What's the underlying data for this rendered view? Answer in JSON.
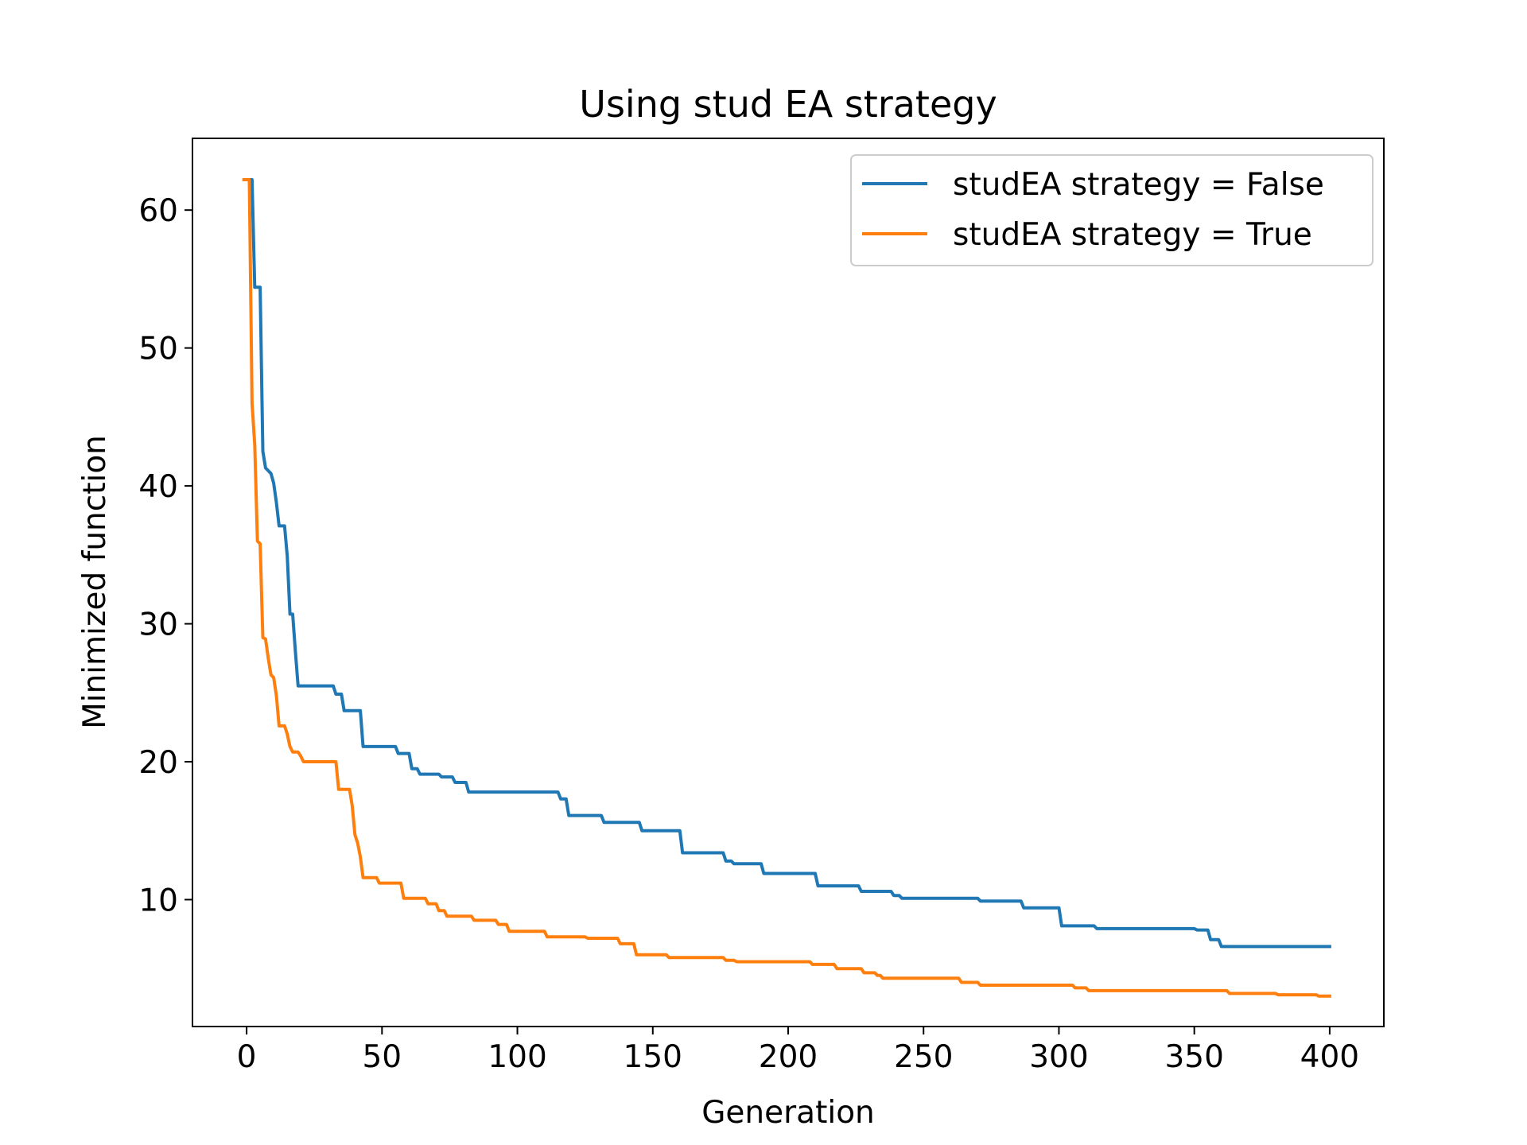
{
  "chart_data": {
    "type": "line",
    "title": "Using stud EA strategy",
    "xlabel": "Generation",
    "ylabel": "Minimized function",
    "xlim": [
      -20,
      420
    ],
    "ylim": [
      0.8,
      65.2
    ],
    "xticks": [
      0,
      50,
      100,
      150,
      200,
      250,
      300,
      350,
      400
    ],
    "yticks": [
      10,
      20,
      30,
      40,
      50,
      60
    ],
    "grid": false,
    "legend": "top-right",
    "series": [
      {
        "name": "studEA strategy = False",
        "color": "#1f77b4",
        "x": [
          0,
          2,
          3,
          4,
          5,
          6,
          7,
          8,
          9,
          10,
          11,
          12,
          13,
          14,
          15,
          16,
          17,
          18,
          19,
          20,
          32,
          33,
          35,
          36,
          42,
          43,
          55,
          56,
          60,
          61,
          63,
          64,
          71,
          72,
          76,
          77,
          81,
          82,
          115,
          116,
          118,
          119,
          131,
          132,
          145,
          146,
          160,
          161,
          176,
          177,
          179,
          180,
          190,
          191,
          210,
          211,
          226,
          227,
          238,
          239,
          241,
          242,
          270,
          271,
          286,
          287,
          300,
          301,
          313,
          314,
          350,
          351,
          355,
          356,
          359,
          360,
          400
        ],
        "y": [
          62.2,
          62.2,
          54.4,
          54.4,
          54.4,
          42.5,
          41.3,
          41.1,
          40.9,
          40.2,
          38.8,
          37.1,
          37.1,
          37.1,
          34.9,
          30.7,
          30.7,
          28.0,
          25.5,
          25.5,
          25.5,
          24.9,
          24.9,
          23.7,
          23.7,
          21.1,
          21.1,
          20.6,
          20.6,
          19.5,
          19.5,
          19.1,
          19.1,
          18.9,
          18.9,
          18.5,
          18.5,
          17.8,
          17.8,
          17.3,
          17.3,
          16.1,
          16.1,
          15.6,
          15.6,
          15.0,
          15.0,
          13.4,
          13.4,
          12.8,
          12.8,
          12.6,
          12.6,
          11.9,
          11.9,
          11.0,
          11.0,
          10.6,
          10.6,
          10.3,
          10.3,
          10.1,
          10.1,
          9.9,
          9.9,
          9.4,
          9.4,
          8.1,
          8.1,
          7.9,
          7.9,
          7.8,
          7.8,
          7.1,
          7.1,
          6.6,
          6.6
        ]
      },
      {
        "name": "studEA strategy = True",
        "color": "#ff7f0e",
        "x": [
          -1,
          1,
          2,
          3,
          4,
          5,
          6,
          7,
          8,
          9,
          10,
          11,
          12,
          13,
          14,
          15,
          16,
          17,
          18,
          19,
          20,
          21,
          33,
          34,
          38,
          39,
          40,
          41,
          42,
          43,
          48,
          49,
          57,
          58,
          66,
          67,
          70,
          71,
          73,
          74,
          83,
          84,
          92,
          93,
          96,
          97,
          110,
          111,
          125,
          126,
          137,
          138,
          143,
          144,
          155,
          156,
          176,
          177,
          180,
          181,
          208,
          209,
          217,
          218,
          227,
          228,
          232,
          233,
          234,
          235,
          263,
          264,
          270,
          271,
          305,
          306,
          310,
          311,
          362,
          363,
          380,
          381,
          395,
          396,
          400
        ],
        "y": [
          62.2,
          62.2,
          46.0,
          43.0,
          36.0,
          35.8,
          29.0,
          28.9,
          27.5,
          26.3,
          26.1,
          24.8,
          22.6,
          22.6,
          22.6,
          22.0,
          21.1,
          20.7,
          20.7,
          20.7,
          20.4,
          20.0,
          20.0,
          18.0,
          18.0,
          16.8,
          14.7,
          14.1,
          13.1,
          11.6,
          11.6,
          11.2,
          11.2,
          10.1,
          10.1,
          9.7,
          9.7,
          9.2,
          9.2,
          8.8,
          8.8,
          8.5,
          8.5,
          8.2,
          8.2,
          7.7,
          7.7,
          7.3,
          7.3,
          7.2,
          7.2,
          6.8,
          6.8,
          6.0,
          6.0,
          5.8,
          5.8,
          5.6,
          5.6,
          5.5,
          5.5,
          5.3,
          5.3,
          5.0,
          5.0,
          4.7,
          4.7,
          4.5,
          4.5,
          4.3,
          4.3,
          4.0,
          4.0,
          3.8,
          3.8,
          3.6,
          3.6,
          3.4,
          3.4,
          3.2,
          3.2,
          3.1,
          3.1,
          3.0,
          3.0
        ]
      }
    ]
  }
}
